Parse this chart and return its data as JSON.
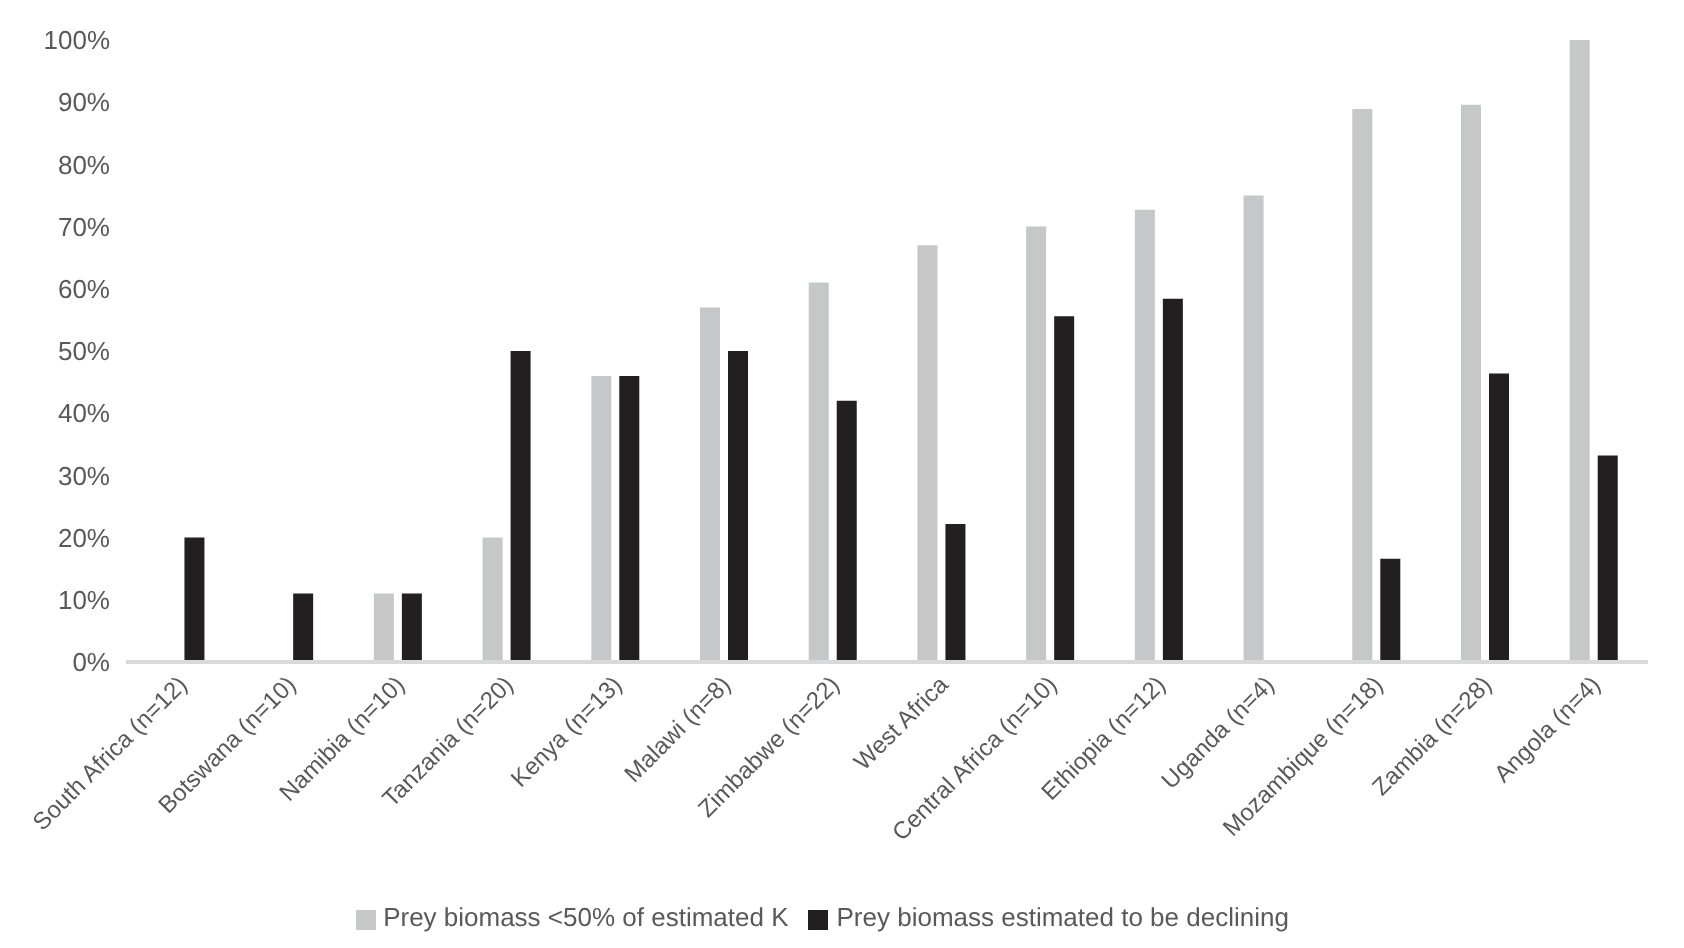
{
  "chart_data": {
    "type": "bar",
    "categories": [
      "South Africa (n=12)",
      "Botswana (n=10)",
      "Namibia (n=10)",
      "Tanzania (n=20)",
      "Kenya (n=13)",
      "Malawi (n=8)",
      "Zimbabwe (n=22)",
      "West Africa",
      "Central Africa (n=10)",
      "Ethiopia (n=12)",
      "Uganda (n=4)",
      "Mozambique (n=18)",
      "Zambia (n=28)",
      "Angola (n=4)"
    ],
    "series": [
      {
        "name": "Prey biomass <50% of estimated K",
        "color": "#c6c7c9",
        "values": [
          0,
          0,
          11,
          20,
          46,
          57,
          61,
          67,
          70,
          72.7,
          75,
          88.9,
          89.6,
          100
        ]
      },
      {
        "name": "Prey biomass estimated to be declining",
        "color": "#231f20",
        "values": [
          20,
          11,
          11,
          50,
          46,
          50,
          42,
          22.2,
          55.6,
          58.4,
          0,
          16.6,
          46.4,
          33.2
        ]
      }
    ],
    "ylim": [
      0,
      100
    ],
    "yticks": [
      {
        "value": 0,
        "label": "0%"
      },
      {
        "value": 10,
        "label": "10%"
      },
      {
        "value": 20,
        "label": "20%"
      },
      {
        "value": 30,
        "label": "30%"
      },
      {
        "value": 40,
        "label": "40%"
      },
      {
        "value": 50,
        "label": "50%"
      },
      {
        "value": 60,
        "label": "60%"
      },
      {
        "value": 70,
        "label": "70%"
      },
      {
        "value": 80,
        "label": "80%"
      },
      {
        "value": 90,
        "label": "90%"
      },
      {
        "value": 100,
        "label": "100%"
      }
    ],
    "grid": false,
    "legend": "bottom"
  }
}
